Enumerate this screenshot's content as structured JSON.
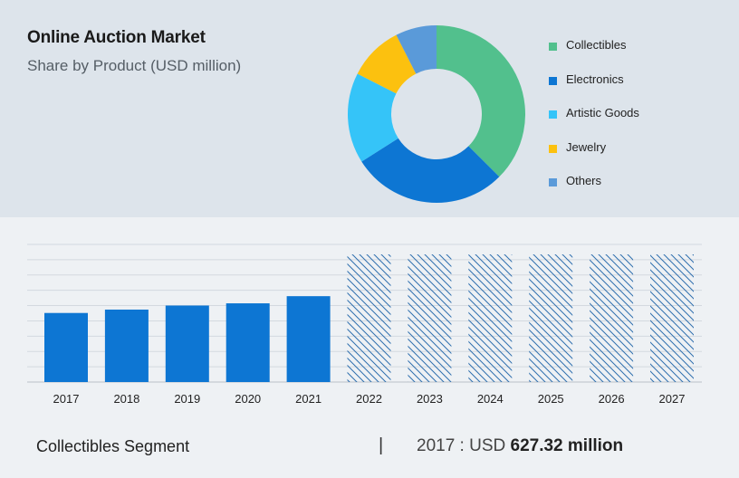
{
  "header": {
    "title": "Online Auction Market",
    "subtitle": "Share by Product (USD million)"
  },
  "legend": [
    {
      "label": "Collectibles",
      "color": "#52c08d"
    },
    {
      "label": "Electronics",
      "color": "#0d76d3"
    },
    {
      "label": "Artistic Goods",
      "color": "#35c4f8"
    },
    {
      "label": "Jewelry",
      "color": "#fcc10f"
    },
    {
      "label": "Others",
      "color": "#5a9ad9"
    }
  ],
  "chart_data": [
    {
      "type": "pie",
      "donut": true,
      "categories": [
        "Collectibles",
        "Electronics",
        "Artistic Goods",
        "Jewelry",
        "Others"
      ],
      "values": [
        37.5,
        28.5,
        16.5,
        10.0,
        7.5
      ],
      "colors": [
        "#52c08d",
        "#0d76d3",
        "#35c4f8",
        "#fcc10f",
        "#5a9ad9"
      ],
      "legend_position": "right"
    },
    {
      "type": "bar",
      "categories": [
        "2017",
        "2018",
        "2019",
        "2020",
        "2021",
        "2022",
        "2023",
        "2024",
        "2025",
        "2026",
        "2027"
      ],
      "values": [
        627.32,
        658,
        695,
        715,
        780,
        null,
        null,
        null,
        null,
        null,
        null
      ],
      "forecast": [
        false,
        false,
        false,
        false,
        false,
        true,
        true,
        true,
        true,
        true,
        true
      ],
      "colors": {
        "actual": "#0d76d3",
        "forecast_hatch": "#2f6fae"
      },
      "grid": true
    }
  ],
  "footer": {
    "segment": "Collectibles Segment",
    "separator": "|",
    "prefix": "2017 : USD ",
    "value": "627.32 million"
  }
}
